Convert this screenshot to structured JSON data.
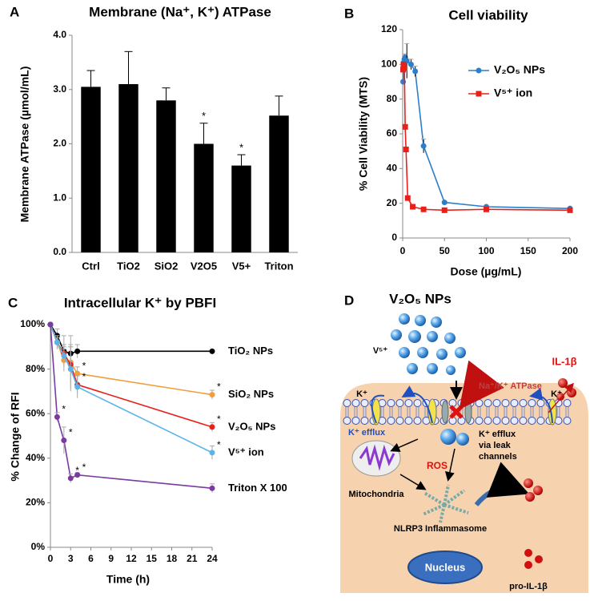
{
  "chart_data": [
    {
      "type": "bar",
      "panel": "A",
      "title": "Membrane (Na⁺, K⁺) ATPase",
      "y_label": "Membrane ATPase (µmol/mL)",
      "categories": [
        "Ctrl",
        "TiO2",
        "SiO2",
        "V2O5",
        "V5+",
        "Triton"
      ],
      "values": [
        3.05,
        3.1,
        2.8,
        2.0,
        1.6,
        2.52
      ],
      "errors": [
        0.3,
        0.6,
        0.23,
        0.38,
        0.2,
        0.36
      ],
      "markers": [
        null,
        null,
        null,
        "*",
        "*",
        null
      ],
      "color": "#000000",
      "ylim": [
        0,
        4
      ],
      "yticks": [
        {
          "value": 0,
          "label": "0.0"
        },
        {
          "value": 1,
          "label": "1.0"
        },
        {
          "value": 2,
          "label": "2.0"
        },
        {
          "value": 3,
          "label": "3.0"
        },
        {
          "value": 4,
          "label": "4.0"
        }
      ]
    },
    {
      "type": "line",
      "panel": "B",
      "title": "Cell viability",
      "x_label": "Dose (µg/mL)",
      "y_label": "% Cell Viability (MTS)",
      "xlim": [
        0,
        200
      ],
      "xticks": [
        0,
        50,
        100,
        150,
        200
      ],
      "ylim": [
        0,
        120
      ],
      "yticks": [
        0,
        20,
        40,
        60,
        80,
        100,
        120
      ],
      "legend": "upper right",
      "series": [
        {
          "name": "V₂O₅ NPs",
          "color": "#2b7fcb",
          "marker": "circle",
          "x": [
            0.5,
            1,
            2,
            3,
            5,
            10,
            15,
            25,
            50,
            100,
            200
          ],
          "values": [
            90,
            101,
            103,
            104,
            102,
            100,
            96,
            53,
            20.5,
            18,
            17
          ],
          "errors": [
            null,
            null,
            3,
            null,
            10,
            3,
            3,
            4,
            null,
            null,
            null
          ]
        },
        {
          "name": "V⁵⁺ ion",
          "color": "#e8201a",
          "marker": "square",
          "x": [
            0.5,
            1,
            2,
            3,
            4,
            6,
            12,
            25,
            50,
            100,
            200
          ],
          "values": [
            97,
            100,
            98,
            64,
            51,
            23,
            18,
            16.5,
            16,
            16.5,
            16
          ]
        }
      ]
    },
    {
      "type": "line",
      "panel": "C",
      "title": "Intracellular K⁺ by PBFI",
      "x_label": "Time (h)",
      "y_label": "% Change of RFI",
      "xlim": [
        0,
        24
      ],
      "xticks": [
        0,
        3,
        6,
        9,
        12,
        15,
        18,
        21,
        24
      ],
      "ylim": [
        0,
        100
      ],
      "yticks": [
        {
          "value": 0,
          "label": "0%"
        },
        {
          "value": 20,
          "label": "20%"
        },
        {
          "value": 40,
          "label": "40%"
        },
        {
          "value": 60,
          "label": "60%"
        },
        {
          "value": 80,
          "label": "80%"
        },
        {
          "value": 100,
          "label": "100%"
        }
      ],
      "legend": "line end",
      "x": [
        0,
        1,
        2,
        3,
        4,
        24
      ],
      "series": [
        {
          "name": "TiO₂ NPs",
          "color": "#000000",
          "marker": "circle",
          "values": [
            100,
            95,
            88,
            87,
            88,
            88
          ],
          "errors": [
            null,
            3,
            7,
            4,
            3,
            null
          ],
          "markers": [
            null,
            null,
            null,
            null,
            null,
            null
          ]
        },
        {
          "name": "SiO₂ NPs",
          "color": "#f39c3c",
          "marker": "circle",
          "values": [
            100,
            92,
            84,
            83,
            78,
            68.5
          ],
          "errors": [
            null,
            3,
            5,
            12,
            3,
            2
          ],
          "markers": [
            null,
            null,
            null,
            null,
            "*",
            "*"
          ]
        },
        {
          "name": "V₂O₅ NPs",
          "color": "#e8201a",
          "marker": "circle",
          "values": [
            100,
            92,
            87,
            82,
            73,
            54
          ],
          "errors": [
            null,
            2,
            4,
            8,
            4,
            2
          ],
          "markers": [
            null,
            null,
            null,
            null,
            "*",
            "*"
          ]
        },
        {
          "name": "V⁵⁺ ion",
          "color": "#5ab4e8",
          "marker": "circle",
          "values": [
            100,
            92,
            86,
            80,
            72,
            42.5
          ],
          "errors": [
            null,
            3,
            4,
            10,
            5,
            3
          ],
          "markers": [
            null,
            null,
            null,
            null,
            null,
            "*"
          ]
        },
        {
          "name": "Triton X 100",
          "color": "#7a3aa0",
          "marker": "circle",
          "values": [
            100,
            58.5,
            48,
            31,
            32.5,
            26.5
          ],
          "errors": [
            null,
            2,
            6,
            2,
            1,
            2
          ],
          "markers": [
            null,
            "*",
            "*",
            "*",
            "*",
            null
          ]
        }
      ]
    }
  ],
  "diagram": {
    "panel": "D",
    "title": "V₂O₅ NPs",
    "ion": "V⁵⁺",
    "pump": "Na⁺/K⁺ ATPase",
    "k_left": "K⁺",
    "k_right": "K⁺",
    "efflux": "K⁺ efflux",
    "leak": [
      "K⁺ efflux",
      "via leak",
      "channels"
    ],
    "ros": "ROS",
    "mito": "Mitochondria",
    "il1b": "IL-1β",
    "nlrp3": "NLRP3 Inflammasome",
    "nucleus": "Nucleus",
    "pro": "pro-IL-1β"
  }
}
